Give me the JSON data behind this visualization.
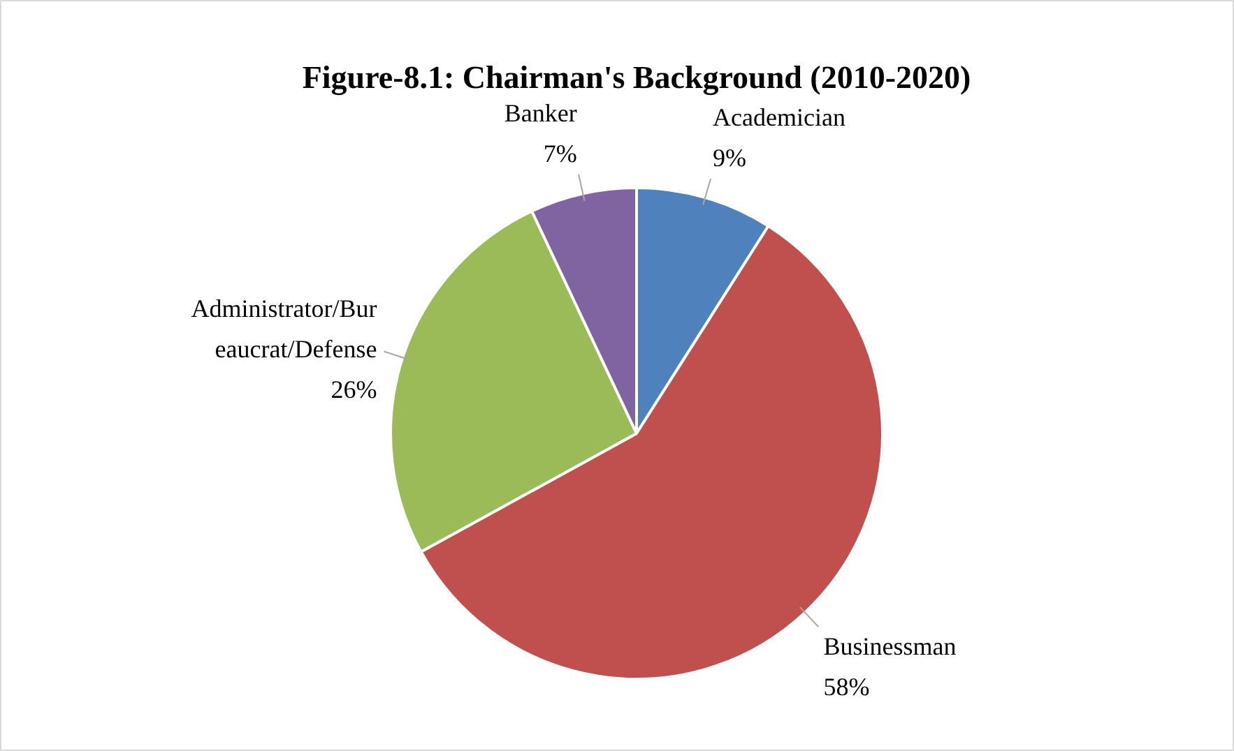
{
  "chart_data": {
    "type": "pie",
    "title": "Figure-8.1: Chairman's Background (2010-2020)",
    "categories": [
      "Academician",
      "Businessman",
      "Administrator/Bureaucrat/Defense",
      "Banker"
    ],
    "values": [
      9,
      58,
      26,
      7
    ],
    "value_labels": [
      "9%",
      "58%",
      "26%",
      "7%"
    ],
    "colors": [
      "#4f81bd",
      "#c0504d",
      "#9bbb59",
      "#8064a2"
    ]
  }
}
